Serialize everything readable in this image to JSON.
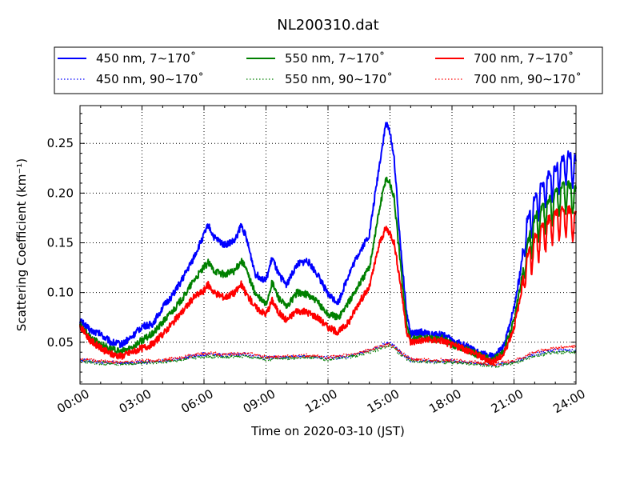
{
  "chart_data": {
    "type": "line",
    "title": "NL200310.dat",
    "xlabel": "Time on 2020-03-10 (JST)",
    "ylabel": "Scattering Coefficient (km⁻¹)",
    "xlim": [
      0,
      24
    ],
    "ylim": [
      0.008,
      0.288
    ],
    "x_ticks": [
      0,
      3,
      6,
      9,
      12,
      15,
      18,
      21,
      24
    ],
    "x_tick_labels": [
      "00:00",
      "03:00",
      "06:00",
      "09:00",
      "12:00",
      "15:00",
      "18:00",
      "21:00",
      "24:00"
    ],
    "y_ticks": [
      0.05,
      0.1,
      0.15,
      0.2,
      0.25
    ],
    "y_tick_labels": [
      "0.05",
      "0.10",
      "0.15",
      "0.20",
      "0.25"
    ],
    "grid": true,
    "legend_placement": "top, above plot, 3 columns",
    "colors": {
      "blue": "#0000ff",
      "green": "#008000",
      "red": "#ff0000"
    },
    "series": [
      {
        "name": "450 nm, 7∼170˚",
        "color": "#0000ff",
        "style": "solid",
        "points": [
          [
            0,
            0.072
          ],
          [
            0.5,
            0.062
          ],
          [
            1,
            0.058
          ],
          [
            1.5,
            0.05
          ],
          [
            2,
            0.048
          ],
          [
            2.5,
            0.055
          ],
          [
            3,
            0.066
          ],
          [
            3.5,
            0.068
          ],
          [
            4,
            0.085
          ],
          [
            4.5,
            0.098
          ],
          [
            5,
            0.115
          ],
          [
            5.5,
            0.135
          ],
          [
            6,
            0.158
          ],
          [
            6.2,
            0.168
          ],
          [
            6.5,
            0.155
          ],
          [
            7,
            0.148
          ],
          [
            7.5,
            0.152
          ],
          [
            7.8,
            0.168
          ],
          [
            8,
            0.158
          ],
          [
            8.5,
            0.118
          ],
          [
            9,
            0.112
          ],
          [
            9.3,
            0.135
          ],
          [
            9.6,
            0.118
          ],
          [
            10,
            0.108
          ],
          [
            10.5,
            0.128
          ],
          [
            11,
            0.132
          ],
          [
            11.5,
            0.118
          ],
          [
            12,
            0.098
          ],
          [
            12.5,
            0.09
          ],
          [
            13,
            0.118
          ],
          [
            13.5,
            0.14
          ],
          [
            14,
            0.158
          ],
          [
            14.5,
            0.23
          ],
          [
            14.8,
            0.27
          ],
          [
            15,
            0.262
          ],
          [
            15.2,
            0.235
          ],
          [
            15.5,
            0.15
          ],
          [
            15.8,
            0.08
          ],
          [
            16,
            0.058
          ],
          [
            16.5,
            0.06
          ],
          [
            17,
            0.057
          ],
          [
            17.5,
            0.058
          ],
          [
            18,
            0.052
          ],
          [
            18.5,
            0.048
          ],
          [
            19,
            0.042
          ],
          [
            19.5,
            0.038
          ],
          [
            20,
            0.035
          ],
          [
            20.5,
            0.045
          ],
          [
            21,
            0.085
          ],
          [
            21.3,
            0.12
          ],
          [
            21.6,
            0.17
          ],
          [
            22,
            0.195
          ],
          [
            22.5,
            0.215
          ],
          [
            23,
            0.225
          ],
          [
            23.5,
            0.24
          ],
          [
            24,
            0.235
          ]
        ]
      },
      {
        "name": "550 nm, 7∼170˚",
        "color": "#008000",
        "style": "solid",
        "points": [
          [
            0,
            0.066
          ],
          [
            0.5,
            0.055
          ],
          [
            1,
            0.048
          ],
          [
            1.5,
            0.043
          ],
          [
            2,
            0.04
          ],
          [
            2.5,
            0.045
          ],
          [
            3,
            0.052
          ],
          [
            3.5,
            0.058
          ],
          [
            4,
            0.07
          ],
          [
            4.5,
            0.082
          ],
          [
            5,
            0.095
          ],
          [
            5.5,
            0.112
          ],
          [
            6,
            0.125
          ],
          [
            6.2,
            0.13
          ],
          [
            6.5,
            0.122
          ],
          [
            7,
            0.118
          ],
          [
            7.5,
            0.122
          ],
          [
            7.8,
            0.132
          ],
          [
            8,
            0.125
          ],
          [
            8.5,
            0.098
          ],
          [
            9,
            0.088
          ],
          [
            9.3,
            0.11
          ],
          [
            9.6,
            0.095
          ],
          [
            10,
            0.085
          ],
          [
            10.5,
            0.1
          ],
          [
            11,
            0.098
          ],
          [
            11.5,
            0.09
          ],
          [
            12,
            0.078
          ],
          [
            12.5,
            0.075
          ],
          [
            13,
            0.09
          ],
          [
            13.5,
            0.108
          ],
          [
            14,
            0.125
          ],
          [
            14.5,
            0.185
          ],
          [
            14.8,
            0.215
          ],
          [
            15,
            0.21
          ],
          [
            15.2,
            0.195
          ],
          [
            15.5,
            0.13
          ],
          [
            15.8,
            0.07
          ],
          [
            16,
            0.052
          ],
          [
            16.5,
            0.055
          ],
          [
            17,
            0.053
          ],
          [
            17.5,
            0.054
          ],
          [
            18,
            0.048
          ],
          [
            18.5,
            0.044
          ],
          [
            19,
            0.04
          ],
          [
            19.5,
            0.035
          ],
          [
            20,
            0.032
          ],
          [
            20.5,
            0.04
          ],
          [
            21,
            0.072
          ],
          [
            21.3,
            0.105
          ],
          [
            21.6,
            0.145
          ],
          [
            22,
            0.175
          ],
          [
            22.5,
            0.19
          ],
          [
            23,
            0.2
          ],
          [
            23.5,
            0.21
          ],
          [
            24,
            0.205
          ]
        ]
      },
      {
        "name": "700 nm, 7∼170˚",
        "color": "#ff0000",
        "style": "solid",
        "points": [
          [
            0,
            0.066
          ],
          [
            0.5,
            0.052
          ],
          [
            1,
            0.044
          ],
          [
            1.5,
            0.038
          ],
          [
            2,
            0.036
          ],
          [
            2.5,
            0.04
          ],
          [
            3,
            0.044
          ],
          [
            3.5,
            0.048
          ],
          [
            4,
            0.058
          ],
          [
            4.5,
            0.07
          ],
          [
            5,
            0.082
          ],
          [
            5.5,
            0.095
          ],
          [
            6,
            0.102
          ],
          [
            6.2,
            0.108
          ],
          [
            6.5,
            0.1
          ],
          [
            7,
            0.095
          ],
          [
            7.5,
            0.1
          ],
          [
            7.8,
            0.108
          ],
          [
            8,
            0.1
          ],
          [
            8.5,
            0.085
          ],
          [
            9,
            0.078
          ],
          [
            9.3,
            0.092
          ],
          [
            9.6,
            0.08
          ],
          [
            10,
            0.072
          ],
          [
            10.5,
            0.082
          ],
          [
            11,
            0.08
          ],
          [
            11.5,
            0.075
          ],
          [
            12,
            0.065
          ],
          [
            12.5,
            0.06
          ],
          [
            13,
            0.07
          ],
          [
            13.5,
            0.09
          ],
          [
            14,
            0.105
          ],
          [
            14.5,
            0.15
          ],
          [
            14.8,
            0.165
          ],
          [
            15,
            0.16
          ],
          [
            15.2,
            0.15
          ],
          [
            15.5,
            0.11
          ],
          [
            15.8,
            0.062
          ],
          [
            16,
            0.05
          ],
          [
            16.5,
            0.052
          ],
          [
            17,
            0.052
          ],
          [
            17.5,
            0.052
          ],
          [
            18,
            0.047
          ],
          [
            18.5,
            0.044
          ],
          [
            19,
            0.04
          ],
          [
            19.5,
            0.034
          ],
          [
            20,
            0.03
          ],
          [
            20.5,
            0.038
          ],
          [
            21,
            0.065
          ],
          [
            21.3,
            0.095
          ],
          [
            21.6,
            0.135
          ],
          [
            22,
            0.155
          ],
          [
            22.5,
            0.17
          ],
          [
            23,
            0.18
          ],
          [
            23.5,
            0.185
          ],
          [
            24,
            0.18
          ]
        ]
      },
      {
        "name": "450 nm, 90∼170˚",
        "color": "#0000ff",
        "style": "dotted",
        "points": [
          [
            0,
            0.032
          ],
          [
            1,
            0.03
          ],
          [
            2,
            0.029
          ],
          [
            3,
            0.03
          ],
          [
            4,
            0.031
          ],
          [
            5,
            0.034
          ],
          [
            6,
            0.038
          ],
          [
            7,
            0.037
          ],
          [
            8,
            0.038
          ],
          [
            9,
            0.034
          ],
          [
            10,
            0.035
          ],
          [
            11,
            0.036
          ],
          [
            12,
            0.034
          ],
          [
            13,
            0.036
          ],
          [
            14,
            0.042
          ],
          [
            15,
            0.05
          ],
          [
            15.5,
            0.04
          ],
          [
            16,
            0.032
          ],
          [
            17,
            0.031
          ],
          [
            18,
            0.031
          ],
          [
            19,
            0.029
          ],
          [
            20,
            0.027
          ],
          [
            21,
            0.03
          ],
          [
            22,
            0.038
          ],
          [
            23,
            0.042
          ],
          [
            24,
            0.042
          ]
        ]
      },
      {
        "name": "550 nm, 90∼170˚",
        "color": "#008000",
        "style": "dotted",
        "points": [
          [
            0,
            0.031
          ],
          [
            1,
            0.029
          ],
          [
            2,
            0.028
          ],
          [
            3,
            0.029
          ],
          [
            4,
            0.03
          ],
          [
            5,
            0.033
          ],
          [
            6,
            0.036
          ],
          [
            7,
            0.035
          ],
          [
            8,
            0.036
          ],
          [
            9,
            0.033
          ],
          [
            10,
            0.034
          ],
          [
            11,
            0.035
          ],
          [
            12,
            0.033
          ],
          [
            13,
            0.035
          ],
          [
            14,
            0.04
          ],
          [
            15,
            0.047
          ],
          [
            15.5,
            0.038
          ],
          [
            16,
            0.031
          ],
          [
            17,
            0.03
          ],
          [
            18,
            0.03
          ],
          [
            19,
            0.028
          ],
          [
            20,
            0.026
          ],
          [
            21,
            0.029
          ],
          [
            22,
            0.036
          ],
          [
            23,
            0.04
          ],
          [
            24,
            0.04
          ]
        ]
      },
      {
        "name": "700 nm, 90∼170˚",
        "color": "#ff0000",
        "style": "dotted",
        "points": [
          [
            0,
            0.033
          ],
          [
            1,
            0.031
          ],
          [
            2,
            0.03
          ],
          [
            3,
            0.031
          ],
          [
            4,
            0.032
          ],
          [
            5,
            0.035
          ],
          [
            6,
            0.039
          ],
          [
            7,
            0.038
          ],
          [
            8,
            0.039
          ],
          [
            9,
            0.035
          ],
          [
            10,
            0.036
          ],
          [
            11,
            0.037
          ],
          [
            12,
            0.035
          ],
          [
            13,
            0.037
          ],
          [
            14,
            0.042
          ],
          [
            15,
            0.048
          ],
          [
            15.5,
            0.04
          ],
          [
            16,
            0.033
          ],
          [
            17,
            0.032
          ],
          [
            18,
            0.032
          ],
          [
            19,
            0.03
          ],
          [
            20,
            0.028
          ],
          [
            21,
            0.031
          ],
          [
            22,
            0.04
          ],
          [
            23,
            0.044
          ],
          [
            24,
            0.046
          ]
        ]
      }
    ]
  }
}
